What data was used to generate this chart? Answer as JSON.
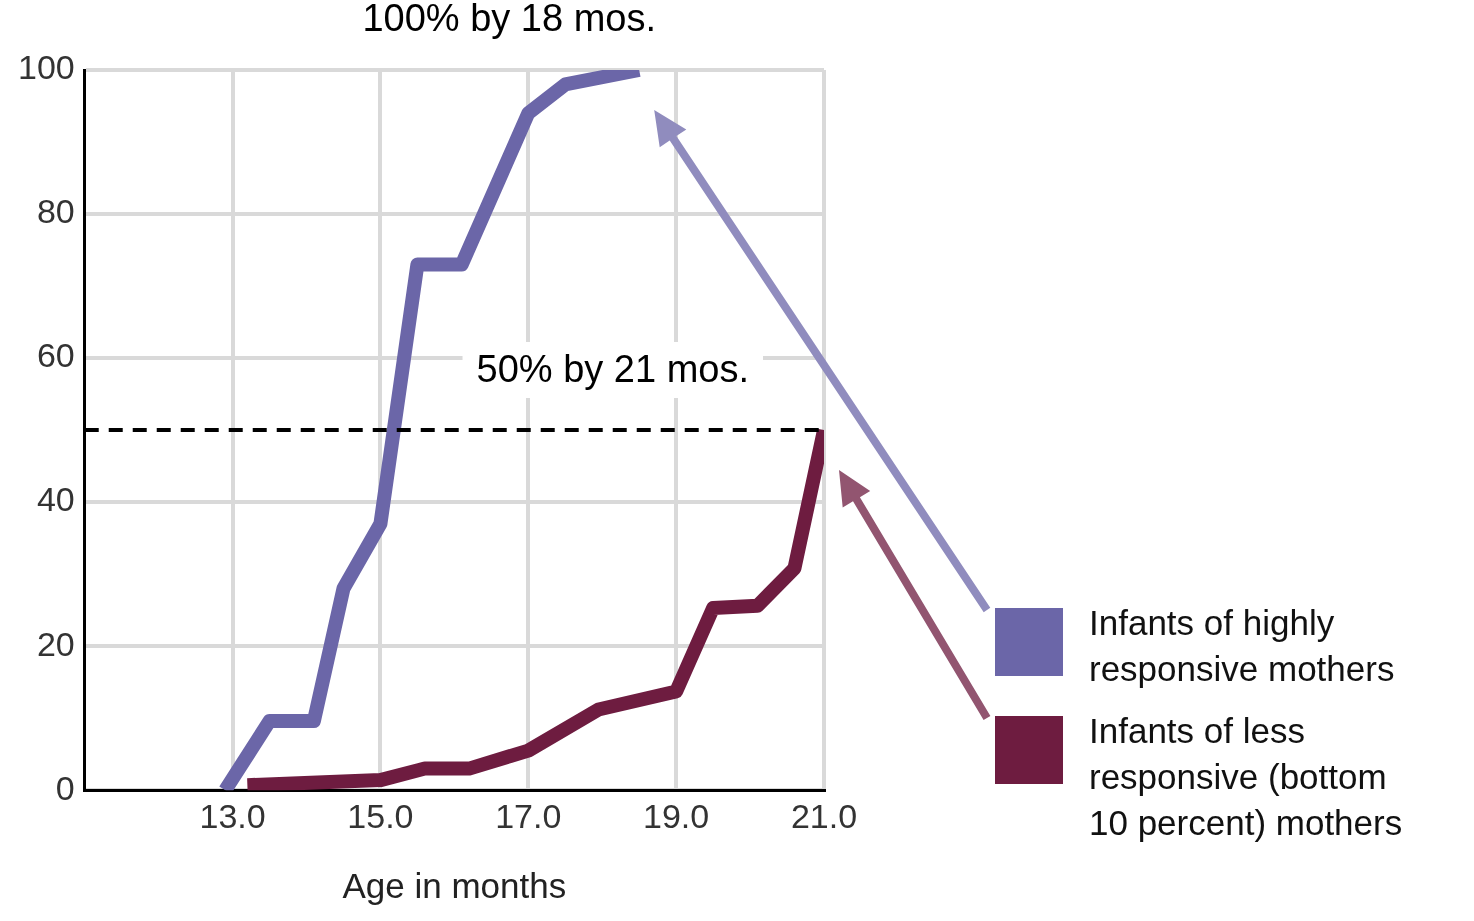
{
  "chart_data": {
    "type": "line",
    "xlabel": "Age in months",
    "xlim": [
      11,
      21
    ],
    "xticks": [
      {
        "value": 13,
        "label": "13.0"
      },
      {
        "value": 15,
        "label": "15.0"
      },
      {
        "value": 17,
        "label": "17.0"
      },
      {
        "value": 19,
        "label": "19.0"
      },
      {
        "value": 21,
        "label": "21.0"
      }
    ],
    "ylim": [
      0,
      100
    ],
    "yticks": [
      0,
      20,
      40,
      60,
      80,
      100
    ],
    "grid": true,
    "legend": "bottom right",
    "marker": "none",
    "line_style": "solid",
    "series": [
      {
        "name": "Infants of highly responsive mothers",
        "color": "#6b66a8",
        "x": [
          12.9,
          13.5,
          14.1,
          14.5,
          15.0,
          15.5,
          16.1,
          17.0,
          17.5,
          18.5
        ],
        "values": [
          0,
          9.6,
          9.6,
          28,
          37,
          73,
          73,
          94,
          98,
          100
        ]
      },
      {
        "name": "Infants of less responsive (bottom 10 percent) mothers",
        "color": "#6e1c40",
        "x": [
          13.2,
          15.0,
          15.6,
          16.2,
          17.0,
          17.95,
          19.0,
          19.5,
          20.1,
          20.6,
          21.0
        ],
        "values": [
          0.7,
          1.4,
          3,
          3,
          5.5,
          11.2,
          13.7,
          25.3,
          25.6,
          30.8,
          50
        ]
      }
    ],
    "ref_lines": [
      {
        "axis": "y",
        "value": 50,
        "color": "#000000",
        "line_style": "dashed"
      }
    ],
    "annotations": [
      {
        "text": "100% by 18 mos.",
        "x": 18.5,
        "y": 100
      },
      {
        "text": "50% by 21 mos.",
        "x": 21,
        "y": 50
      }
    ]
  }
}
